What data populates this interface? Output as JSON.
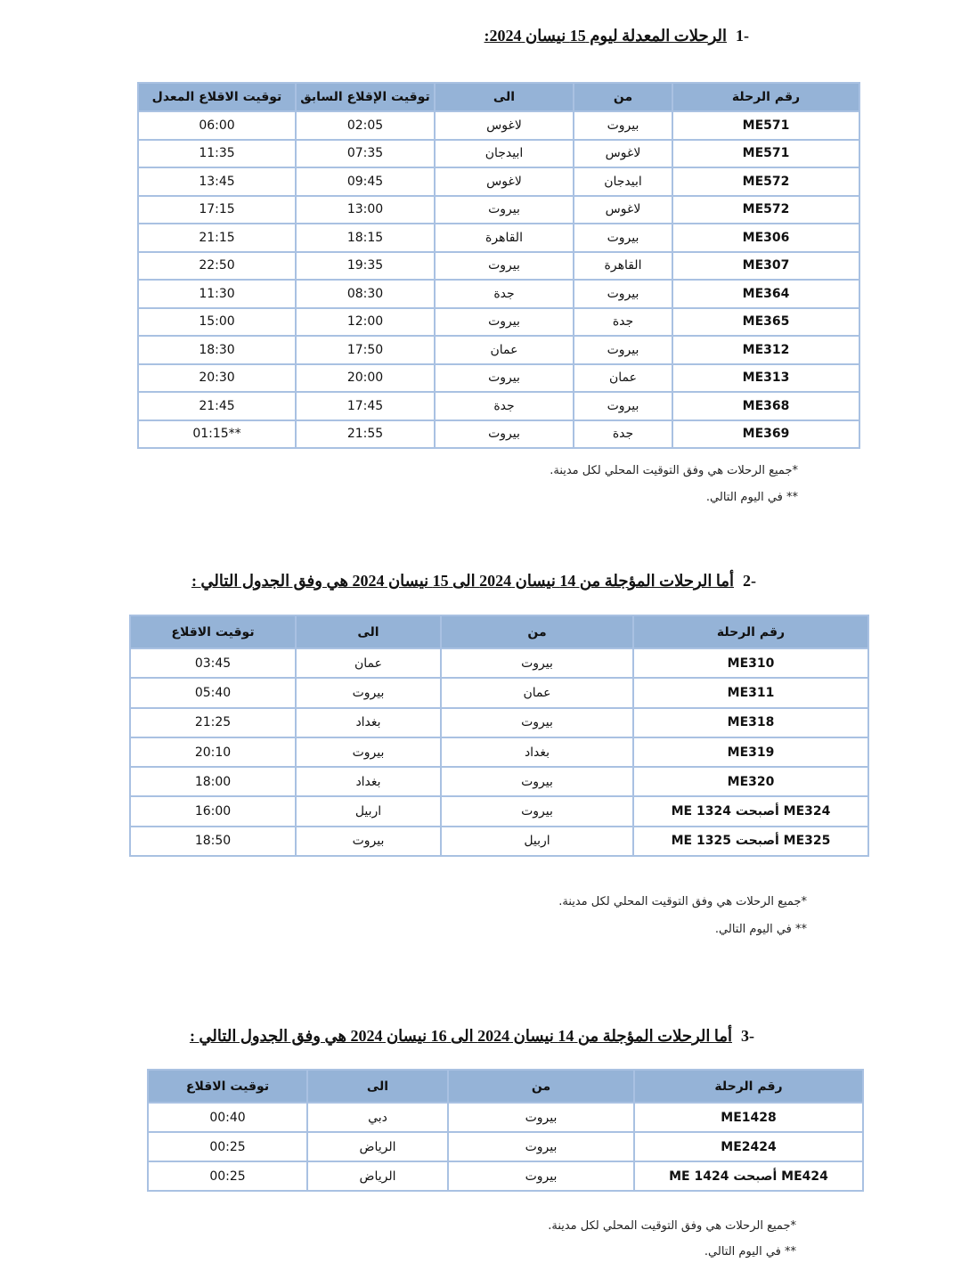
{
  "section1": {
    "number": "-1",
    "title": "الرحلات المعدلة ليوم 15 نيسان 2024:",
    "headers": [
      "رقم الرحلة",
      "من",
      "الى",
      "توقيت الإقلاع السابق",
      "توقيت الاقلاع المعدل"
    ],
    "rows": [
      [
        "ME571",
        "بيروت",
        "لاغوس",
        "02:05",
        "06:00"
      ],
      [
        "ME571",
        "لاغوس",
        "ابيدجان",
        "07:35",
        "11:35"
      ],
      [
        "ME572",
        "ابيدجان",
        "لاغوس",
        "09:45",
        "13:45"
      ],
      [
        "ME572",
        "لاغوس",
        "بيروت",
        "13:00",
        "17:15"
      ],
      [
        "ME306",
        "بيروت",
        "القاهرة",
        "18:15",
        "21:15"
      ],
      [
        "ME307",
        "القاهرة",
        "بيروت",
        "19:35",
        "22:50"
      ],
      [
        "ME364",
        "بيروت",
        "جدة",
        "08:30",
        "11:30"
      ],
      [
        "ME365",
        "جدة",
        "بيروت",
        "12:00",
        "15:00"
      ],
      [
        "ME312",
        "بيروت",
        "عمان",
        "17:50",
        "18:30"
      ],
      [
        "ME313",
        "عمان",
        "بيروت",
        "20:00",
        "20:30"
      ],
      [
        "ME368",
        "بيروت",
        "جدة",
        "17:45",
        "21:45"
      ],
      [
        "ME369",
        "جدة",
        "بيروت",
        "21:55",
        "**01:15"
      ]
    ],
    "note1": "*جميع الرحلات هي وفق التوقيت المحلي لكل مدينة.",
    "note2": "** في اليوم التالي."
  },
  "section2": {
    "number": "-2",
    "title": "أما الرحلات المؤجلة من 14 نيسان 2024  الى 15 نيسان 2024 هي وفق الجدول التالي :",
    "headers": [
      "رقم الرحلة",
      "من",
      "الى",
      "توقيت الاقلاع"
    ],
    "rows": [
      [
        "ME310",
        "بيروت",
        "عمان",
        "03:45"
      ],
      [
        "ME311",
        "عمان",
        "بيروت",
        "05:40"
      ],
      [
        "ME318",
        "بيروت",
        "بغداد",
        "21:25"
      ],
      [
        "ME319",
        "بغداد",
        "بيروت",
        "20:10"
      ],
      [
        "ME320",
        "بيروت",
        "بغداد",
        "18:00"
      ],
      [
        "ME324  أصبحت ME 1324",
        "بيروت",
        "اربيل",
        "16:00"
      ],
      [
        "ME325  أصبحت ME 1325",
        "اربيل",
        "بيروت",
        "18:50"
      ]
    ],
    "note1": "*جميع الرحلات هي وفق التوقيت المحلي لكل مدينة.",
    "note2": "** في اليوم التالي."
  },
  "section3": {
    "number": "-3",
    "title": "أما الرحلات المؤجلة من 14 نيسان 2024 الى 16 نيسان 2024 هي وفق الجدول التالي :",
    "headers": [
      "رقم الرحلة",
      "من",
      "الى",
      "توقيت الاقلاع"
    ],
    "rows": [
      [
        "ME1428",
        "بيروت",
        "دبي",
        "00:40"
      ],
      [
        "ME2424",
        "بيروت",
        "الرياض",
        "00:25"
      ],
      [
        "ME424  أصبحت ME 1424",
        "بيروت",
        "الرياض",
        "00:25"
      ]
    ],
    "note1": "*جميع الرحلات هي وفق التوقيت المحلي لكل مدينة.",
    "note2": "** في اليوم التالي."
  }
}
